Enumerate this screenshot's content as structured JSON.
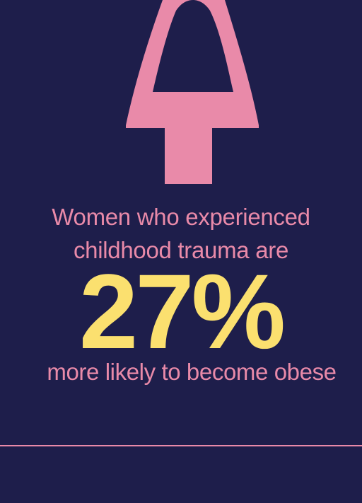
{
  "colors": {
    "background": "#1e1e4b",
    "accent_pink": "#e98aa9",
    "accent_yellow": "#fbe06f"
  },
  "illustration": {
    "icon": "pink-figure-silhouette-icon"
  },
  "statement": {
    "line1": "Women who experienced",
    "line2": "childhood trauma are",
    "stat": "27%",
    "line3": "more likely to become obese"
  }
}
